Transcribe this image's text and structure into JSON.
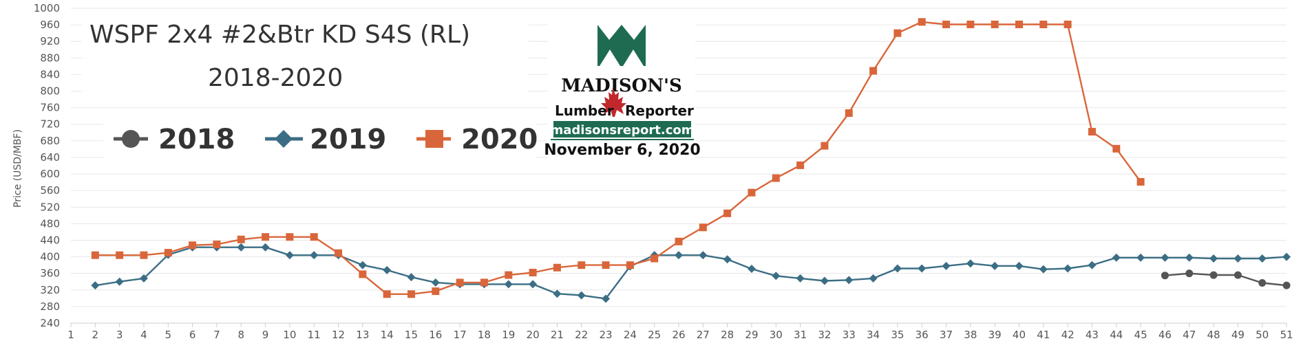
{
  "chart_data": {
    "type": "line",
    "title_line1": "WSPF 2x4 #2&Btr KD S4S (RL)",
    "title_line2": "2018-2020",
    "ylabel": "Price (USD/MBF)",
    "xlabel": "",
    "xlim": [
      1,
      51
    ],
    "ylim": [
      240,
      1000
    ],
    "y_ticks": [
      "240",
      "280",
      "320",
      "360",
      "400",
      "440",
      "480",
      "520",
      "560",
      "600",
      "640",
      "680",
      "720",
      "760",
      "800",
      "840",
      "880",
      "920",
      "960",
      "1000"
    ],
    "x_ticks": [
      "1",
      "2",
      "3",
      "4",
      "5",
      "6",
      "7",
      "8",
      "9",
      "10",
      "11",
      "12",
      "13",
      "14",
      "15",
      "16",
      "17",
      "18",
      "19",
      "20",
      "21",
      "22",
      "23",
      "24",
      "25",
      "26",
      "27",
      "28",
      "29",
      "30",
      "31",
      "32",
      "33",
      "34",
      "35",
      "36",
      "37",
      "38",
      "39",
      "40",
      "41",
      "42",
      "43",
      "44",
      "45",
      "46",
      "47",
      "48",
      "49",
      "50",
      "51"
    ],
    "grid": true,
    "legend_position": "top-left",
    "series": [
      {
        "name": "2018",
        "color": "#555555",
        "marker": "circle",
        "points": [
          [
            46,
            355
          ],
          [
            47,
            360
          ],
          [
            48,
            356
          ],
          [
            49,
            356
          ],
          [
            50,
            337
          ],
          [
            51,
            331
          ]
        ]
      },
      {
        "name": "2019",
        "color": "#3b6e85",
        "marker": "diamond",
        "points": [
          [
            2,
            331
          ],
          [
            3,
            340
          ],
          [
            4,
            348
          ],
          [
            5,
            405
          ],
          [
            6,
            423
          ],
          [
            7,
            423
          ],
          [
            8,
            423
          ],
          [
            9,
            423
          ],
          [
            10,
            404
          ],
          [
            11,
            404
          ],
          [
            12,
            404
          ],
          [
            13,
            380
          ],
          [
            14,
            368
          ],
          [
            15,
            351
          ],
          [
            16,
            338
          ],
          [
            17,
            334
          ],
          [
            18,
            334
          ],
          [
            19,
            334
          ],
          [
            20,
            334
          ],
          [
            21,
            311
          ],
          [
            22,
            307
          ],
          [
            23,
            299
          ],
          [
            24,
            377
          ],
          [
            25,
            404
          ],
          [
            26,
            404
          ],
          [
            27,
            404
          ],
          [
            28,
            394
          ],
          [
            29,
            371
          ],
          [
            30,
            354
          ],
          [
            31,
            348
          ],
          [
            32,
            342
          ],
          [
            33,
            344
          ],
          [
            34,
            348
          ],
          [
            35,
            372
          ],
          [
            36,
            372
          ],
          [
            37,
            378
          ],
          [
            38,
            384
          ],
          [
            39,
            378
          ],
          [
            40,
            378
          ],
          [
            41,
            370
          ],
          [
            42,
            372
          ],
          [
            43,
            380
          ],
          [
            44,
            398
          ],
          [
            45,
            398
          ],
          [
            46,
            398
          ],
          [
            47,
            398
          ],
          [
            48,
            396
          ],
          [
            49,
            396
          ],
          [
            50,
            396
          ],
          [
            51,
            400
          ]
        ]
      },
      {
        "name": "2020",
        "color": "#d9663a",
        "marker": "square",
        "points": [
          [
            2,
            404
          ],
          [
            3,
            404
          ],
          [
            4,
            404
          ],
          [
            5,
            410
          ],
          [
            6,
            428
          ],
          [
            7,
            430
          ],
          [
            8,
            442
          ],
          [
            9,
            448
          ],
          [
            10,
            448
          ],
          [
            11,
            448
          ],
          [
            12,
            409
          ],
          [
            13,
            358
          ],
          [
            14,
            310
          ],
          [
            15,
            310
          ],
          [
            16,
            317
          ],
          [
            17,
            338
          ],
          [
            18,
            338
          ],
          [
            19,
            356
          ],
          [
            20,
            362
          ],
          [
            21,
            374
          ],
          [
            22,
            380
          ],
          [
            23,
            380
          ],
          [
            24,
            380
          ],
          [
            25,
            396
          ],
          [
            26,
            437
          ],
          [
            27,
            471
          ],
          [
            28,
            505
          ],
          [
            29,
            555
          ],
          [
            30,
            590
          ],
          [
            31,
            621
          ],
          [
            32,
            668
          ],
          [
            33,
            747
          ],
          [
            34,
            849
          ],
          [
            35,
            940
          ],
          [
            36,
            967
          ],
          [
            37,
            961
          ],
          [
            38,
            961
          ],
          [
            39,
            961
          ],
          [
            40,
            961
          ],
          [
            41,
            961
          ],
          [
            42,
            961
          ],
          [
            43,
            702
          ],
          [
            44,
            661
          ],
          [
            45,
            581
          ]
        ]
      }
    ]
  },
  "logo": {
    "name": "MADISON'S",
    "sub_left": "Lumber",
    "sub_right": "Reporter",
    "url": "madisonsreport.com",
    "date": "November 6, 2020",
    "brand_color": "#1e6b52",
    "leaf_color": "#c0282d"
  },
  "colors": {
    "grid": "#e6e6e6",
    "axis": "#cccccc",
    "text": "#555555"
  }
}
